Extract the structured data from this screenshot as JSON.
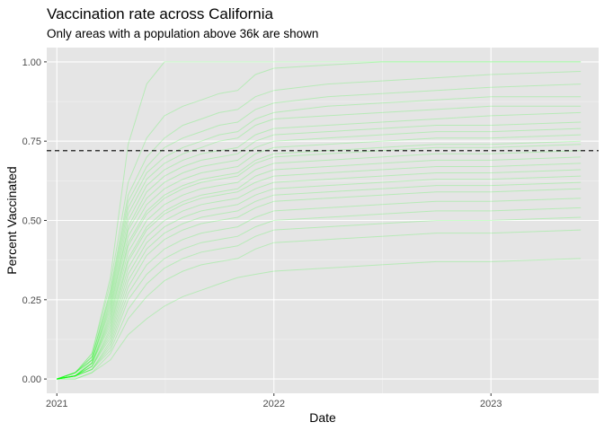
{
  "chart_data": {
    "type": "line",
    "title": "Vaccination rate across California",
    "subtitle": "Only areas with a population above 36k are shown",
    "xlabel": "Date",
    "ylabel": "Percent Vaccinated",
    "x_range": [
      "2020-12-15",
      "2023-07-01"
    ],
    "ylim": [
      -0.045,
      1.045
    ],
    "x_ticks": [
      {
        "date": "2021-01-01",
        "label": "2021"
      },
      {
        "date": "2022-01-01",
        "label": "2022"
      },
      {
        "date": "2023-01-01",
        "label": "2023"
      }
    ],
    "y_ticks": [
      {
        "value": 0.0,
        "label": "0.00"
      },
      {
        "value": 0.25,
        "label": "0.25"
      },
      {
        "value": 0.5,
        "label": "0.50"
      },
      {
        "value": 0.75,
        "label": "0.75"
      },
      {
        "value": 1.0,
        "label": "1.00"
      }
    ],
    "reference_line": {
      "y": 0.72,
      "style": "dashed",
      "color": "#000000"
    },
    "line_color": "#00ff00",
    "line_opacity": 0.2,
    "grid": true,
    "panel_background": "#e5e5e5",
    "series_x": [
      "2021-01-01",
      "2021-02-01",
      "2021-03-01",
      "2021-04-01",
      "2021-05-01",
      "2021-06-01",
      "2021-07-01",
      "2021-08-01",
      "2021-09-01",
      "2021-10-01",
      "2021-11-01",
      "2021-12-01",
      "2022-01-01",
      "2022-04-01",
      "2022-07-01",
      "2022-10-01",
      "2023-01-01",
      "2023-06-01"
    ],
    "series_y": [
      [
        0.0,
        0.02,
        0.08,
        0.32,
        0.74,
        0.93,
        1.0,
        1.0,
        1.0,
        1.0,
        1.0,
        1.0,
        1.0,
        1.0,
        1.0,
        1.0,
        1.0,
        1.0
      ],
      [
        0.0,
        0.02,
        0.08,
        0.3,
        0.62,
        0.76,
        0.83,
        0.86,
        0.88,
        0.9,
        0.91,
        0.96,
        0.98,
        0.99,
        1.0,
        1.0,
        1.0,
        1.0
      ],
      [
        0.0,
        0.02,
        0.07,
        0.28,
        0.58,
        0.7,
        0.76,
        0.8,
        0.82,
        0.84,
        0.85,
        0.89,
        0.91,
        0.93,
        0.94,
        0.95,
        0.96,
        0.97
      ],
      [
        0.0,
        0.02,
        0.07,
        0.27,
        0.56,
        0.67,
        0.73,
        0.76,
        0.78,
        0.8,
        0.81,
        0.85,
        0.87,
        0.89,
        0.9,
        0.91,
        0.92,
        0.93
      ],
      [
        0.0,
        0.02,
        0.07,
        0.26,
        0.54,
        0.65,
        0.7,
        0.73,
        0.75,
        0.77,
        0.78,
        0.82,
        0.84,
        0.86,
        0.87,
        0.88,
        0.89,
        0.89
      ],
      [
        0.0,
        0.02,
        0.06,
        0.25,
        0.52,
        0.63,
        0.68,
        0.71,
        0.73,
        0.75,
        0.76,
        0.8,
        0.82,
        0.83,
        0.84,
        0.85,
        0.86,
        0.86
      ],
      [
        0.0,
        0.02,
        0.06,
        0.24,
        0.5,
        0.61,
        0.66,
        0.69,
        0.71,
        0.72,
        0.73,
        0.77,
        0.79,
        0.8,
        0.81,
        0.82,
        0.83,
        0.84
      ],
      [
        0.0,
        0.02,
        0.06,
        0.23,
        0.48,
        0.59,
        0.64,
        0.67,
        0.69,
        0.7,
        0.71,
        0.75,
        0.77,
        0.78,
        0.79,
        0.8,
        0.8,
        0.81
      ],
      [
        0.0,
        0.01,
        0.06,
        0.22,
        0.47,
        0.57,
        0.62,
        0.65,
        0.67,
        0.68,
        0.69,
        0.73,
        0.75,
        0.76,
        0.77,
        0.78,
        0.78,
        0.79
      ],
      [
        0.0,
        0.01,
        0.05,
        0.21,
        0.45,
        0.55,
        0.6,
        0.63,
        0.65,
        0.66,
        0.67,
        0.71,
        0.73,
        0.74,
        0.75,
        0.76,
        0.76,
        0.77
      ],
      [
        0.0,
        0.01,
        0.05,
        0.2,
        0.43,
        0.53,
        0.58,
        0.61,
        0.63,
        0.64,
        0.65,
        0.69,
        0.71,
        0.72,
        0.73,
        0.74,
        0.74,
        0.75
      ],
      [
        0.0,
        0.01,
        0.05,
        0.19,
        0.42,
        0.52,
        0.57,
        0.6,
        0.62,
        0.63,
        0.64,
        0.68,
        0.7,
        0.71,
        0.72,
        0.73,
        0.73,
        0.74
      ],
      [
        0.0,
        0.01,
        0.05,
        0.18,
        0.4,
        0.5,
        0.55,
        0.58,
        0.6,
        0.61,
        0.62,
        0.66,
        0.68,
        0.69,
        0.7,
        0.71,
        0.71,
        0.72
      ],
      [
        0.0,
        0.01,
        0.05,
        0.17,
        0.38,
        0.48,
        0.53,
        0.56,
        0.58,
        0.59,
        0.6,
        0.64,
        0.66,
        0.67,
        0.68,
        0.69,
        0.69,
        0.7
      ],
      [
        0.0,
        0.01,
        0.04,
        0.16,
        0.37,
        0.47,
        0.52,
        0.55,
        0.57,
        0.58,
        0.59,
        0.62,
        0.64,
        0.65,
        0.66,
        0.67,
        0.67,
        0.68
      ],
      [
        0.0,
        0.01,
        0.04,
        0.15,
        0.35,
        0.45,
        0.5,
        0.53,
        0.55,
        0.56,
        0.57,
        0.6,
        0.62,
        0.63,
        0.64,
        0.65,
        0.65,
        0.66
      ],
      [
        0.0,
        0.01,
        0.04,
        0.14,
        0.33,
        0.43,
        0.48,
        0.51,
        0.53,
        0.54,
        0.55,
        0.58,
        0.6,
        0.61,
        0.62,
        0.63,
        0.63,
        0.64
      ],
      [
        0.0,
        0.01,
        0.04,
        0.13,
        0.31,
        0.41,
        0.46,
        0.49,
        0.51,
        0.52,
        0.53,
        0.56,
        0.58,
        0.59,
        0.6,
        0.61,
        0.61,
        0.62
      ],
      [
        0.0,
        0.01,
        0.03,
        0.12,
        0.29,
        0.39,
        0.44,
        0.47,
        0.49,
        0.5,
        0.51,
        0.54,
        0.56,
        0.57,
        0.58,
        0.59,
        0.59,
        0.6
      ],
      [
        0.0,
        0.01,
        0.03,
        0.11,
        0.27,
        0.36,
        0.41,
        0.44,
        0.46,
        0.47,
        0.48,
        0.51,
        0.53,
        0.54,
        0.55,
        0.56,
        0.56,
        0.57
      ],
      [
        0.0,
        0.01,
        0.03,
        0.1,
        0.25,
        0.33,
        0.38,
        0.41,
        0.43,
        0.44,
        0.45,
        0.48,
        0.5,
        0.51,
        0.52,
        0.53,
        0.53,
        0.54
      ],
      [
        0.0,
        0.01,
        0.03,
        0.09,
        0.22,
        0.3,
        0.35,
        0.38,
        0.4,
        0.41,
        0.42,
        0.45,
        0.47,
        0.48,
        0.49,
        0.5,
        0.5,
        0.51
      ],
      [
        0.0,
        0.0,
        0.02,
        0.08,
        0.19,
        0.26,
        0.31,
        0.34,
        0.36,
        0.37,
        0.38,
        0.41,
        0.43,
        0.44,
        0.45,
        0.46,
        0.46,
        0.47
      ],
      [
        0.0,
        0.0,
        0.02,
        0.06,
        0.14,
        0.19,
        0.23,
        0.26,
        0.28,
        0.3,
        0.32,
        0.33,
        0.34,
        0.35,
        0.36,
        0.37,
        0.37,
        0.38
      ]
    ]
  }
}
